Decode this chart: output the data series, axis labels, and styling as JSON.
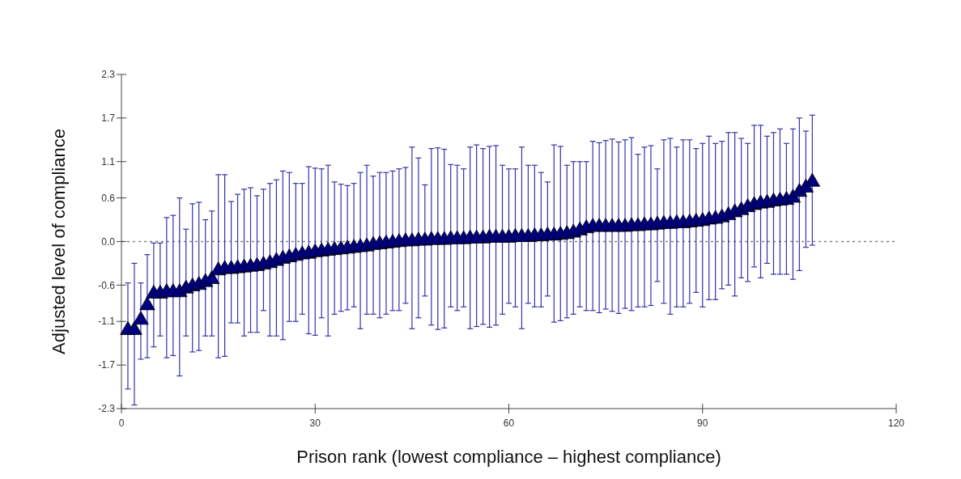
{
  "chart_data": {
    "type": "scatter",
    "xlabel": "Prison rank (lowest compliance – highest compliance)",
    "ylabel": "Adjusted level of compliance",
    "x": [
      1,
      2,
      3,
      4,
      5,
      6,
      7,
      8,
      9,
      10,
      11,
      12,
      13,
      14,
      15,
      16,
      17,
      18,
      19,
      20,
      21,
      22,
      23,
      24,
      25,
      26,
      27,
      28,
      29,
      30,
      31,
      32,
      33,
      34,
      35,
      36,
      37,
      38,
      39,
      40,
      41,
      42,
      43,
      44,
      45,
      46,
      47,
      48,
      49,
      50,
      51,
      52,
      53,
      54,
      55,
      56,
      57,
      58,
      59,
      60,
      61,
      62,
      63,
      64,
      65,
      66,
      67,
      68,
      69,
      70,
      71,
      72,
      73,
      74,
      75,
      76,
      77,
      78,
      79,
      80,
      81,
      82,
      83,
      84,
      85,
      86,
      87,
      88,
      89,
      90,
      91,
      92,
      93,
      94,
      95,
      96,
      97,
      98,
      99,
      100,
      101,
      102,
      103,
      104,
      105,
      106,
      107
    ],
    "series": [
      {
        "color": "#000080",
        "values": [
          -1.22,
          -1.22,
          -1.08,
          -0.88,
          -0.72,
          -0.72,
          -0.7,
          -0.7,
          -0.7,
          -0.65,
          -0.62,
          -0.6,
          -0.56,
          -0.52,
          -0.4,
          -0.38,
          -0.38,
          -0.37,
          -0.36,
          -0.35,
          -0.34,
          -0.32,
          -0.3,
          -0.27,
          -0.24,
          -0.22,
          -0.2,
          -0.18,
          -0.17,
          -0.15,
          -0.14,
          -0.13,
          -0.12,
          -0.11,
          -0.1,
          -0.09,
          -0.08,
          -0.07,
          -0.05,
          -0.04,
          -0.03,
          -0.02,
          -0.01,
          0.0,
          0.0,
          0.01,
          0.01,
          0.02,
          0.02,
          0.02,
          0.03,
          0.03,
          0.03,
          0.04,
          0.04,
          0.04,
          0.05,
          0.05,
          0.05,
          0.05,
          0.06,
          0.06,
          0.06,
          0.07,
          0.07,
          0.08,
          0.08,
          0.09,
          0.1,
          0.12,
          0.15,
          0.18,
          0.2,
          0.2,
          0.2,
          0.2,
          0.2,
          0.2,
          0.21,
          0.21,
          0.22,
          0.22,
          0.23,
          0.24,
          0.24,
          0.25,
          0.25,
          0.26,
          0.27,
          0.28,
          0.3,
          0.31,
          0.33,
          0.36,
          0.4,
          0.43,
          0.47,
          0.5,
          0.52,
          0.53,
          0.55,
          0.56,
          0.57,
          0.6,
          0.68,
          0.74,
          0.82
        ],
        "errors": [
          [
            -2.03,
            -0.57
          ],
          [
            -2.25,
            -0.3
          ],
          [
            -1.62,
            -0.57
          ],
          [
            -1.6,
            -0.18
          ],
          [
            -1.45,
            -0.02
          ],
          [
            -1.3,
            -0.02
          ],
          [
            -1.6,
            0.33
          ],
          [
            -1.57,
            0.36
          ],
          [
            -1.85,
            0.6
          ],
          [
            -1.3,
            0.17
          ],
          [
            -1.52,
            0.52
          ],
          [
            -1.5,
            0.54
          ],
          [
            -1.3,
            0.3
          ],
          [
            -1.3,
            0.42
          ],
          [
            -1.6,
            0.92
          ],
          [
            -1.58,
            0.92
          ],
          [
            -1.12,
            0.55
          ],
          [
            -1.12,
            0.65
          ],
          [
            -1.3,
            0.72
          ],
          [
            -1.25,
            0.74
          ],
          [
            -1.25,
            0.63
          ],
          [
            -0.95,
            0.72
          ],
          [
            -1.3,
            0.8
          ],
          [
            -1.3,
            0.85
          ],
          [
            -1.35,
            0.97
          ],
          [
            -1.1,
            0.95
          ],
          [
            -1.1,
            0.8
          ],
          [
            -1.0,
            0.8
          ],
          [
            -1.27,
            1.03
          ],
          [
            -1.29,
            1.01
          ],
          [
            -1.05,
            1.0
          ],
          [
            -1.3,
            1.05
          ],
          [
            -1.0,
            0.82
          ],
          [
            -0.96,
            0.79
          ],
          [
            -0.94,
            0.77
          ],
          [
            -0.9,
            0.8
          ],
          [
            -1.2,
            0.95
          ],
          [
            -1.0,
            1.05
          ],
          [
            -1.0,
            0.9
          ],
          [
            -1.05,
            0.95
          ],
          [
            -1.0,
            0.95
          ],
          [
            -0.95,
            0.97
          ],
          [
            -0.95,
            1.0
          ],
          [
            -0.85,
            1.02
          ],
          [
            -1.2,
            1.3
          ],
          [
            -1.05,
            1.15
          ],
          [
            -0.75,
            0.78
          ],
          [
            -1.15,
            1.28
          ],
          [
            -1.21,
            1.29
          ],
          [
            -1.19,
            1.27
          ],
          [
            -0.9,
            1.06
          ],
          [
            -0.95,
            1.05
          ],
          [
            -0.9,
            1.0
          ],
          [
            -1.2,
            1.3
          ],
          [
            -1.17,
            1.33
          ],
          [
            -1.14,
            1.28
          ],
          [
            -1.18,
            1.31
          ],
          [
            -1.15,
            1.32
          ],
          [
            -1.0,
            1.05
          ],
          [
            -0.85,
            1.0
          ],
          [
            -0.9,
            1.0
          ],
          [
            -1.2,
            1.3
          ],
          [
            -0.85,
            1.05
          ],
          [
            -0.9,
            1.05
          ],
          [
            -0.9,
            0.95
          ],
          [
            -0.75,
            0.82
          ],
          [
            -1.11,
            1.33
          ],
          [
            -1.09,
            1.31
          ],
          [
            -1.05,
            1.05
          ],
          [
            -1.0,
            1.1
          ],
          [
            -0.9,
            1.1
          ],
          [
            -0.95,
            1.1
          ],
          [
            -0.95,
            1.38
          ],
          [
            -0.98,
            1.36
          ],
          [
            -0.93,
            1.39
          ],
          [
            -0.96,
            1.41
          ],
          [
            -0.99,
            1.37
          ],
          [
            -0.92,
            1.4
          ],
          [
            -0.95,
            1.43
          ],
          [
            -0.9,
            1.2
          ],
          [
            -0.9,
            1.3
          ],
          [
            -0.88,
            1.32
          ],
          [
            -0.55,
            1.0
          ],
          [
            -0.85,
            1.4
          ],
          [
            -1.0,
            1.42
          ],
          [
            -0.9,
            1.3
          ],
          [
            -0.9,
            1.4
          ],
          [
            -0.85,
            1.4
          ],
          [
            -0.7,
            1.28
          ],
          [
            -0.9,
            1.35
          ],
          [
            -0.8,
            1.45
          ],
          [
            -0.8,
            1.35
          ],
          [
            -0.65,
            1.38
          ],
          [
            -0.6,
            1.5
          ],
          [
            -0.75,
            1.5
          ],
          [
            -0.5,
            1.42
          ],
          [
            -0.55,
            1.35
          ],
          [
            -0.35,
            1.6
          ],
          [
            -0.5,
            1.6
          ],
          [
            -0.3,
            1.45
          ],
          [
            -0.45,
            1.5
          ],
          [
            -0.45,
            1.55
          ],
          [
            -0.45,
            1.35
          ],
          [
            -0.52,
            1.55
          ],
          [
            -0.4,
            1.7
          ],
          [
            -0.08,
            1.52
          ],
          [
            -0.05,
            1.74
          ]
        ]
      }
    ],
    "xlim": [
      0,
      120
    ],
    "xticks": [
      0,
      30,
      60,
      90,
      120
    ],
    "ylim": [
      -2.3,
      2.3
    ],
    "yticks": [
      -2.3,
      -1.7,
      -1.1,
      -0.6,
      {
        "value": 0,
        "label": "0.0"
      },
      0.6,
      1.1,
      1.7,
      2.3
    ],
    "ref_lines": [
      {
        "axis": "y",
        "value": 0,
        "line_style": "dashed",
        "color": "#808080"
      }
    ],
    "marker": "triangle",
    "grid": false
  }
}
